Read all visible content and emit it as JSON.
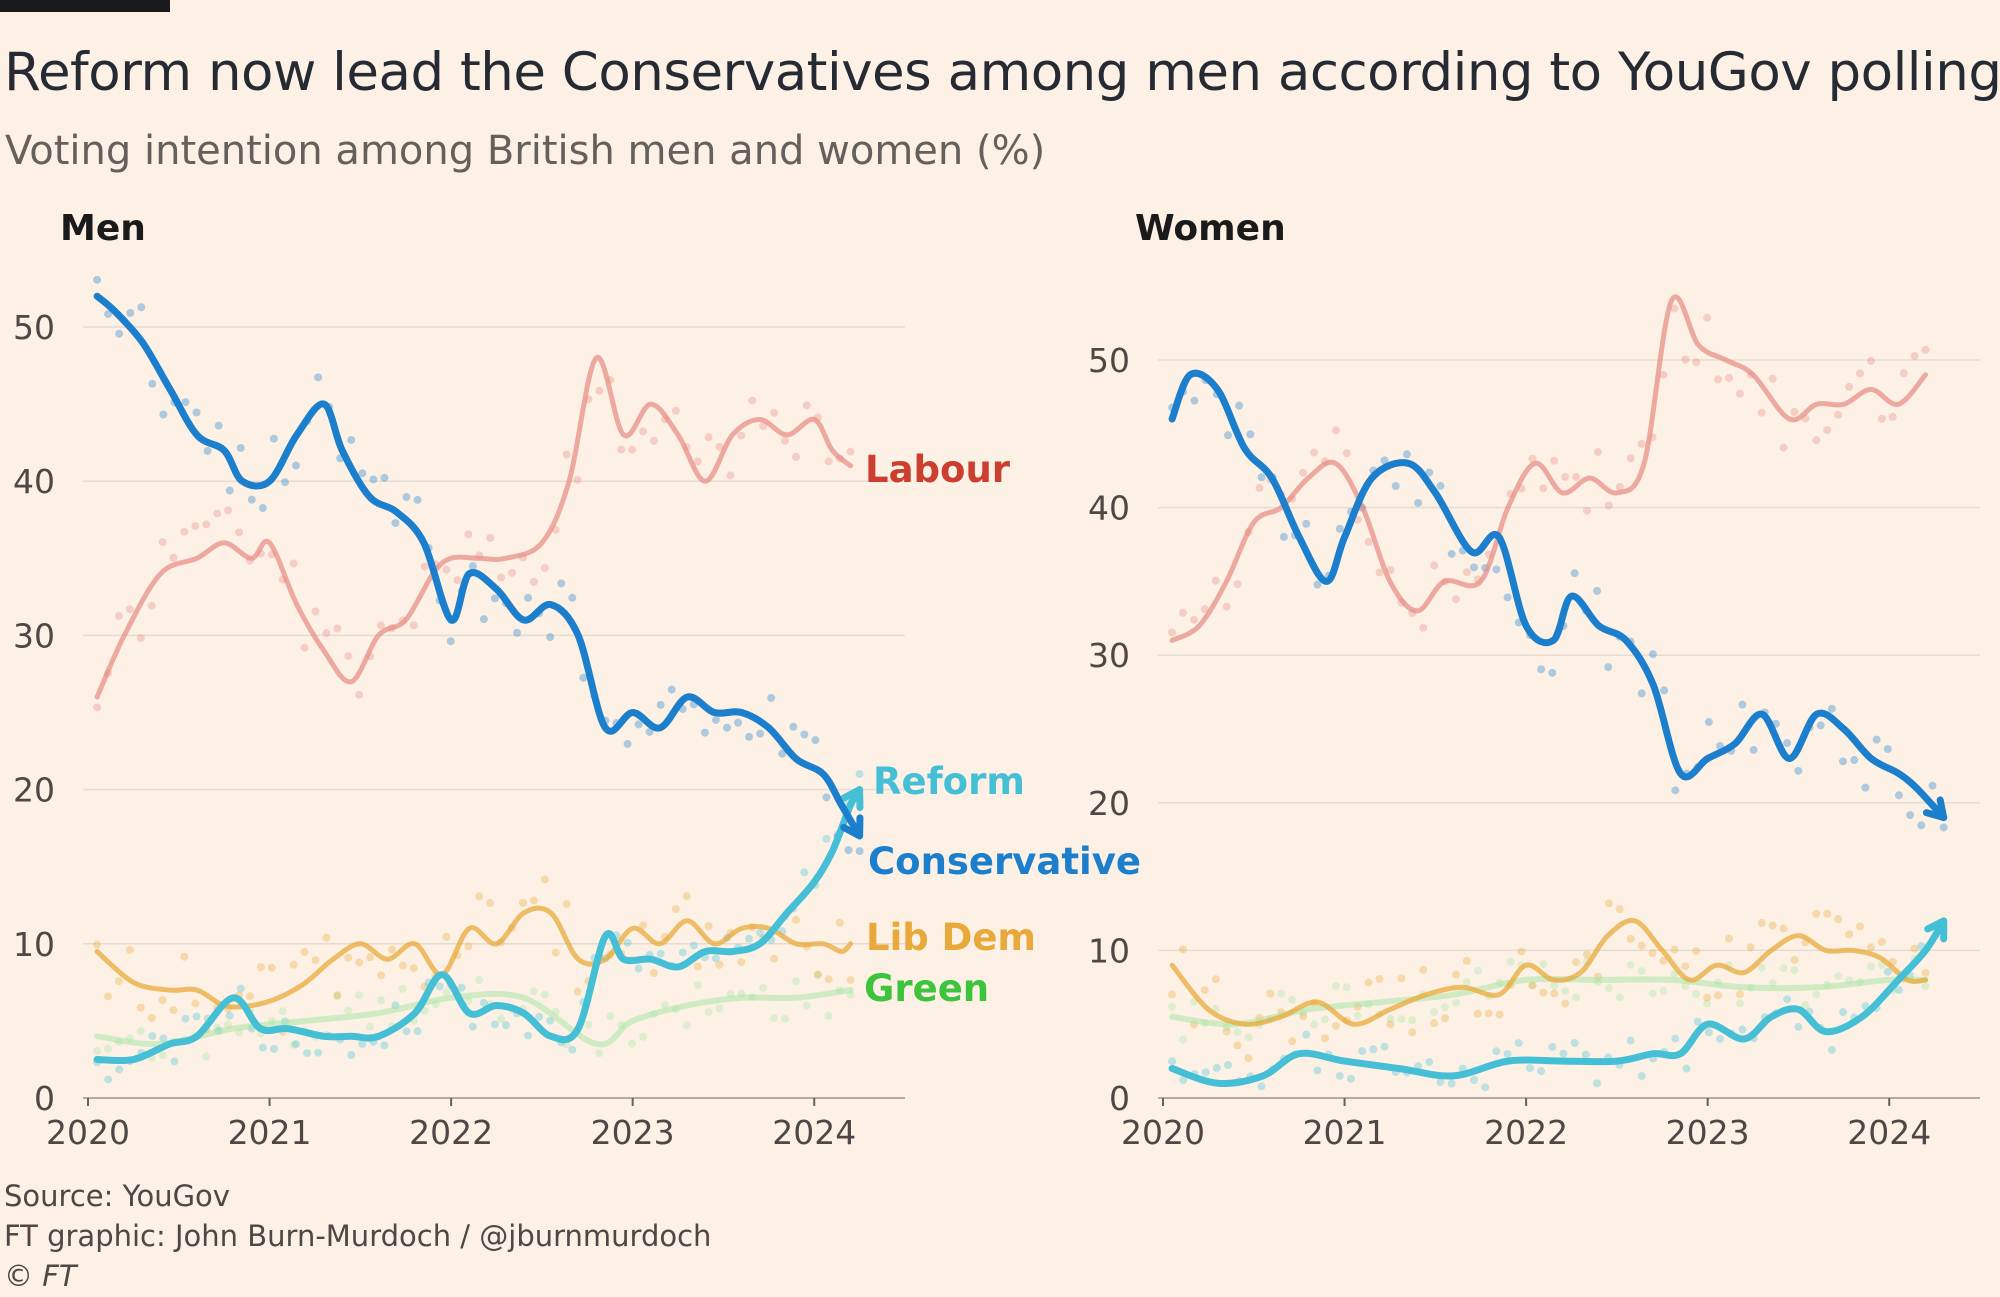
{
  "title": "Reform now lead the Conservatives among men according to YouGov polling",
  "subtitle": "Voting intention among British men and women (%)",
  "footer": {
    "source": "Source: YouGov",
    "credit": "FT graphic: John Burn-Murdoch / @jburnmurdoch",
    "copyright": "© FT"
  },
  "colors": {
    "background": "#fdf1e6",
    "Conservative": "#1b7fcd",
    "Labour": "#e68a80",
    "Labour_label": "#cc3f2f",
    "Reform": "#45bfd6",
    "Lib Dem": "#e8a93a",
    "Green": "#a3e6a0",
    "Green_label": "#3cc43c",
    "gridline": "#e6dcd2"
  },
  "chart_data": [
    {
      "type": "line",
      "panel": "Men",
      "ylim": [
        0,
        52
      ],
      "yticks": [
        0,
        10,
        20,
        30,
        40,
        50
      ],
      "xticks": [
        2020,
        2021,
        2022,
        2023,
        2024
      ],
      "xlim": [
        2020.0,
        2024.5
      ],
      "grid": true,
      "series": [
        {
          "name": "Labour",
          "x": [
            2020.05,
            2020.2,
            2020.4,
            2020.6,
            2020.75,
            2020.9,
            2021.0,
            2021.15,
            2021.3,
            2021.45,
            2021.6,
            2021.75,
            2021.9,
            2022.0,
            2022.15,
            2022.3,
            2022.5,
            2022.65,
            2022.8,
            2022.95,
            2023.1,
            2023.25,
            2023.4,
            2023.55,
            2023.7,
            2023.85,
            2024.0,
            2024.1,
            2024.2
          ],
          "y": [
            26,
            30,
            34,
            35,
            36,
            35,
            36,
            32,
            29,
            27,
            30,
            31,
            34,
            35,
            35,
            35,
            36,
            40,
            48,
            43,
            45,
            43,
            40,
            43,
            44,
            43,
            44,
            42,
            41
          ]
        },
        {
          "name": "Conservative",
          "x": [
            2020.05,
            2020.15,
            2020.3,
            2020.45,
            2020.6,
            2020.75,
            2020.85,
            2021.0,
            2021.15,
            2021.3,
            2021.4,
            2021.55,
            2021.7,
            2021.85,
            2022.0,
            2022.1,
            2022.25,
            2022.4,
            2022.55,
            2022.7,
            2022.85,
            2023.0,
            2023.15,
            2023.3,
            2023.45,
            2023.6,
            2023.75,
            2023.9,
            2024.05,
            2024.15,
            2024.25
          ],
          "y": [
            52,
            51,
            49,
            46,
            43,
            42,
            40,
            40,
            43,
            45,
            42,
            39,
            38,
            36,
            31,
            34,
            33,
            31,
            32,
            30,
            24,
            25,
            24,
            26,
            25,
            25,
            24,
            22,
            21,
            19,
            17
          ]
        },
        {
          "name": "Reform",
          "x": [
            2020.05,
            2020.25,
            2020.45,
            2020.6,
            2020.8,
            2020.95,
            2021.1,
            2021.3,
            2021.45,
            2021.6,
            2021.8,
            2021.95,
            2022.1,
            2022.25,
            2022.4,
            2022.55,
            2022.7,
            2022.85,
            2022.95,
            2023.1,
            2023.25,
            2023.4,
            2023.55,
            2023.7,
            2023.85,
            2024.0,
            2024.1,
            2024.2,
            2024.25
          ],
          "y": [
            2.5,
            2.5,
            3.5,
            4,
            6.5,
            4.5,
            4.5,
            4,
            4,
            4,
            5.5,
            8,
            5.5,
            6,
            5.5,
            4,
            4.5,
            10.5,
            9,
            9,
            8.5,
            9.5,
            9.5,
            10,
            12,
            14,
            16,
            19,
            20
          ]
        },
        {
          "name": "Lib Dem",
          "x": [
            2020.05,
            2020.25,
            2020.45,
            2020.6,
            2020.75,
            2020.9,
            2021.05,
            2021.2,
            2021.35,
            2021.5,
            2021.65,
            2021.8,
            2021.95,
            2022.1,
            2022.25,
            2022.4,
            2022.55,
            2022.7,
            2022.85,
            2023.0,
            2023.15,
            2023.3,
            2023.45,
            2023.6,
            2023.75,
            2023.9,
            2024.05,
            2024.15,
            2024.2
          ],
          "y": [
            9.5,
            7.5,
            7,
            7,
            6,
            6,
            6.5,
            7.5,
            9,
            10,
            9,
            10,
            8,
            11,
            10,
            12,
            12,
            9,
            9,
            11,
            10,
            11.5,
            10,
            11,
            11,
            10,
            10,
            9.5,
            10
          ]
        },
        {
          "name": "Green",
          "x": [
            2020.05,
            2020.4,
            2020.8,
            2021.2,
            2021.6,
            2022.0,
            2022.4,
            2022.8,
            2023.0,
            2023.3,
            2023.6,
            2023.9,
            2024.2
          ],
          "y": [
            4,
            3.5,
            4.5,
            5,
            5.5,
            6.5,
            6.5,
            3.5,
            5,
            6,
            6.5,
            6.5,
            7
          ]
        }
      ]
    },
    {
      "type": "line",
      "panel": "Women",
      "ylim": [
        0,
        53
      ],
      "yticks": [
        0,
        10,
        20,
        30,
        40,
        50
      ],
      "xticks": [
        2020,
        2021,
        2022,
        2023,
        2024
      ],
      "xlim": [
        2020.0,
        2024.5
      ],
      "grid": true,
      "series": [
        {
          "name": "Labour",
          "x": [
            2020.05,
            2020.2,
            2020.35,
            2020.5,
            2020.65,
            2020.8,
            2020.95,
            2021.1,
            2021.25,
            2021.4,
            2021.55,
            2021.75,
            2021.9,
            2022.05,
            2022.2,
            2022.35,
            2022.5,
            2022.65,
            2022.8,
            2022.95,
            2023.1,
            2023.25,
            2023.45,
            2023.6,
            2023.75,
            2023.9,
            2024.05,
            2024.2
          ],
          "y": [
            31,
            32,
            35,
            39,
            40,
            42,
            43,
            40,
            35,
            33,
            35,
            35,
            40,
            43,
            41,
            42,
            41,
            43,
            54,
            51,
            50,
            49,
            46,
            47,
            47,
            48,
            47,
            49
          ]
        },
        {
          "name": "Conservative",
          "x": [
            2020.05,
            2020.15,
            2020.3,
            2020.45,
            2020.6,
            2020.75,
            2020.9,
            2021.0,
            2021.15,
            2021.35,
            2021.5,
            2021.7,
            2021.85,
            2022.0,
            2022.15,
            2022.25,
            2022.4,
            2022.55,
            2022.7,
            2022.85,
            2023.0,
            2023.15,
            2023.3,
            2023.45,
            2023.6,
            2023.75,
            2023.9,
            2024.05,
            2024.15,
            2024.3
          ],
          "y": [
            46,
            49,
            48,
            44,
            42,
            38,
            35,
            38,
            42,
            43,
            41,
            37,
            38,
            32,
            31,
            34,
            32,
            31,
            28,
            22,
            23,
            24,
            26,
            23,
            26,
            25,
            23,
            22,
            21,
            19
          ]
        },
        {
          "name": "Reform",
          "x": [
            2020.05,
            2020.3,
            2020.55,
            2020.75,
            2021.0,
            2021.3,
            2021.6,
            2021.9,
            2022.2,
            2022.5,
            2022.7,
            2022.85,
            2023.0,
            2023.2,
            2023.35,
            2023.5,
            2023.65,
            2023.85,
            2024.05,
            2024.2,
            2024.3
          ],
          "y": [
            2,
            1,
            1.5,
            3,
            2.5,
            2,
            1.5,
            2.5,
            2.5,
            2.5,
            3,
            3,
            5,
            4,
            5.5,
            6,
            4.5,
            5.5,
            8,
            10,
            12
          ]
        },
        {
          "name": "Lib Dem",
          "x": [
            2020.05,
            2020.25,
            2020.45,
            2020.65,
            2020.85,
            2021.05,
            2021.25,
            2021.45,
            2021.65,
            2021.85,
            2022.0,
            2022.15,
            2022.3,
            2022.45,
            2022.6,
            2022.75,
            2022.9,
            2023.05,
            2023.2,
            2023.35,
            2023.5,
            2023.65,
            2023.8,
            2023.95,
            2024.1,
            2024.2
          ],
          "y": [
            9,
            6,
            5,
            5.5,
            6.5,
            5,
            6,
            7,
            7.5,
            7,
            9,
            8,
            8.5,
            11,
            12,
            10,
            8,
            9,
            8.5,
            10,
            11,
            10,
            10,
            9.5,
            8,
            8
          ]
        },
        {
          "name": "Green",
          "x": [
            2020.05,
            2020.4,
            2020.8,
            2021.2,
            2021.6,
            2022.0,
            2022.4,
            2022.8,
            2023.2,
            2023.6,
            2024.0,
            2024.2
          ],
          "y": [
            5.5,
            5,
            6,
            6.5,
            7,
            8,
            8,
            8,
            7.5,
            7.5,
            8,
            8
          ]
        }
      ]
    }
  ],
  "panels": [
    {
      "title": "Men",
      "labels": {
        "Labour": "Labour",
        "Reform": "Reform",
        "Conservative": "Conservative",
        "Lib Dem": "Lib Dem",
        "Green": "Green"
      }
    },
    {
      "title": "Women"
    }
  ]
}
